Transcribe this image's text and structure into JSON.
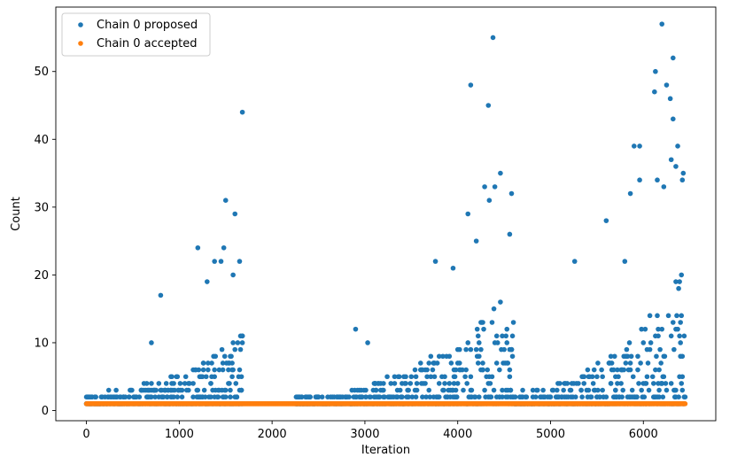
{
  "chart_data": {
    "type": "scatter",
    "xlabel": "Iteration",
    "ylabel": "Count",
    "xlim": [
      -330,
      6780
    ],
    "ylim": [
      -1.5,
      59.5
    ],
    "xticks": [
      0,
      1000,
      2000,
      3000,
      4000,
      5000,
      6000
    ],
    "yticks": [
      0,
      10,
      20,
      30,
      40,
      50
    ],
    "legend_position": "top-left",
    "grid": false,
    "series": [
      {
        "name": "Chain 0 proposed",
        "color": "#1f77b4",
        "segments": [
          {
            "x_start": 0,
            "x_end": 1680,
            "peak": 9,
            "spread": 2.2,
            "outliers": [
              [
                700,
                10
              ],
              [
                800,
                17
              ],
              [
                1200,
                24
              ],
              [
                1300,
                19
              ],
              [
                1380,
                22
              ],
              [
                1450,
                22
              ],
              [
                1480,
                24
              ],
              [
                1500,
                31
              ],
              [
                1580,
                20
              ],
              [
                1600,
                29
              ],
              [
                1650,
                22
              ],
              [
                1680,
                44
              ]
            ]
          },
          {
            "x_start": 2250,
            "x_end": 4600,
            "peak": 15,
            "spread": 2.6,
            "outliers": [
              [
                2270,
                2
              ],
              [
                2900,
                12
              ],
              [
                3030,
                10
              ],
              [
                3760,
                22
              ],
              [
                3950,
                21
              ],
              [
                4110,
                29
              ],
              [
                4140,
                48
              ],
              [
                4200,
                25
              ],
              [
                4290,
                33
              ],
              [
                4330,
                45
              ],
              [
                4340,
                31
              ],
              [
                4380,
                55
              ],
              [
                4400,
                33
              ],
              [
                4460,
                35
              ],
              [
                4560,
                26
              ],
              [
                4580,
                32
              ]
            ]
          },
          {
            "x_start": 4600,
            "x_end": 6450,
            "peak": 19,
            "spread": 2.8,
            "outliers": [
              [
                5260,
                22
              ],
              [
                5600,
                28
              ],
              [
                5800,
                22
              ],
              [
                5860,
                32
              ],
              [
                5900,
                39
              ],
              [
                5960,
                39
              ],
              [
                5960,
                34
              ],
              [
                6120,
                47
              ],
              [
                6130,
                50
              ],
              [
                6150,
                34
              ],
              [
                6200,
                57
              ],
              [
                6220,
                33
              ],
              [
                6250,
                48
              ],
              [
                6290,
                46
              ],
              [
                6300,
                37
              ],
              [
                6320,
                52
              ],
              [
                6320,
                43
              ],
              [
                6350,
                36
              ],
              [
                6370,
                39
              ],
              [
                6420,
                34
              ],
              [
                6430,
                35
              ]
            ]
          }
        ]
      },
      {
        "name": "Chain 0 accepted",
        "color": "#ff7f0e",
        "x_range": [
          0,
          6450
        ],
        "constant_y": 1
      }
    ]
  }
}
